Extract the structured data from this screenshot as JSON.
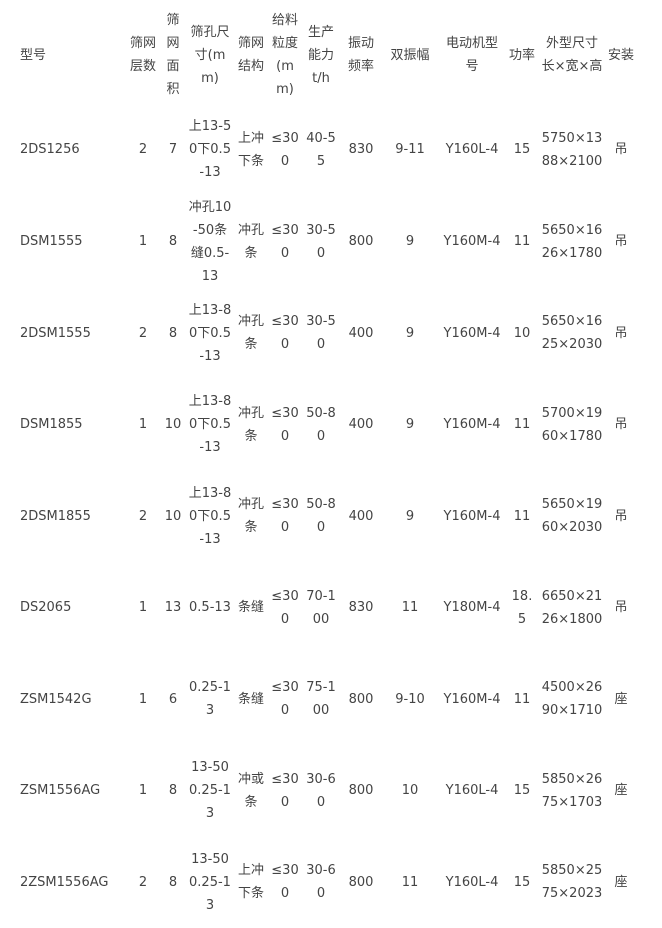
{
  "headers": [
    "型号",
    "筛网层数",
    "筛网面积",
    "筛孔尺寸(mm)",
    "筛网结构",
    "给料粒度(mm)",
    "生产能力t/h",
    "振动频率",
    "双振幅",
    "电动机型号",
    "功率",
    "外型尺寸长×宽×高",
    "安装"
  ],
  "rows": [
    [
      "2DS1256",
      "2",
      "7",
      "上13-50下0.5-13",
      "上冲下条",
      "≤300",
      "40-55",
      "830",
      "9-11",
      "Y160L-4",
      "15",
      "5750×1388×2100",
      "吊"
    ],
    [
      "DSM1555",
      "1",
      "8",
      "冲孔10-50条缝0.5-13",
      "冲孔条",
      "≤300",
      "30-50",
      "800",
      "9",
      "Y160M-4",
      "11",
      "5650×1626×1780",
      "吊"
    ],
    [
      "2DSM1555",
      "2",
      "8",
      "上13-80下0.5-13",
      "冲孔条",
      "≤300",
      "30-50",
      "400",
      "9",
      "Y160M-4",
      "10",
      "5650×1625×2030",
      "吊"
    ],
    [
      "DSM1855",
      "1",
      "10",
      "上13-80下0.5-13",
      "冲孔条",
      "≤300",
      "50-80",
      "400",
      "9",
      "Y160M-4",
      "11",
      "5700×1960×1780",
      "吊"
    ],
    [
      "2DSM1855",
      "2",
      "10",
      "上13-80下0.5-13",
      "冲孔条",
      "≤300",
      "50-80",
      "400",
      "9",
      "Y160M-4",
      "11",
      "5650×1960×2030",
      "吊"
    ],
    [
      "DS2065",
      "1",
      "13",
      "0.5-13",
      "条缝",
      "≤300",
      "70-100",
      "830",
      "11",
      "Y180M-4",
      "18.5",
      "6650×2126×1800",
      "吊"
    ],
    [
      "ZSM1542G",
      "1",
      "6",
      "0.25-13",
      "条缝",
      "≤300",
      "75-100",
      "800",
      "9-10",
      "Y160M-4",
      "11",
      "4500×2690×1710",
      "座"
    ],
    [
      "ZSM1556AG",
      "1",
      "8",
      "13-50 0.25-13",
      "冲或条",
      "≤300",
      "30-60",
      "800",
      "10",
      "Y160L-4",
      "15",
      "5850×2675×1703",
      "座"
    ],
    [
      "2ZSM1556AG",
      "2",
      "8",
      "13-50 0.25-13",
      "上冲下条",
      "≤300",
      "30-60",
      "800",
      "11",
      "Y160L-4",
      "15",
      "5850×2575×2023",
      "座"
    ]
  ]
}
